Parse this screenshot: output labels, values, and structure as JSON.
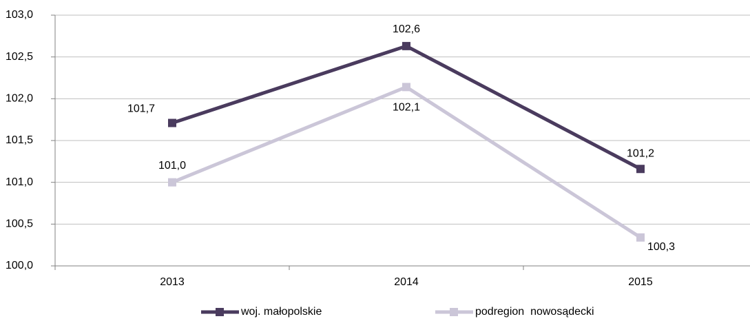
{
  "chart_data": {
    "type": "line",
    "categories": [
      "2013",
      "2014",
      "2015"
    ],
    "series": [
      {
        "name": "woj. małopolskie",
        "color": "#4a3b5e",
        "values": [
          101.71,
          102.63,
          101.16
        ],
        "value_labels": [
          "101,7",
          "102,6",
          "101,2"
        ]
      },
      {
        "name": "podregion  nowosądecki",
        "color": "#cbc6d8",
        "values": [
          101.0,
          102.14,
          100.34
        ],
        "value_labels": [
          "101,0",
          "102,1",
          "100,3"
        ]
      }
    ],
    "ylim": [
      100,
      103
    ],
    "yticks": [
      {
        "value": 100,
        "label": "100,0"
      },
      {
        "value": 100.5,
        "label": "100,5"
      },
      {
        "value": 101,
        "label": "101,0"
      },
      {
        "value": 101.5,
        "label": "101,5"
      },
      {
        "value": 102,
        "label": "102,0"
      },
      {
        "value": 102.5,
        "label": "102,5"
      },
      {
        "value": 103,
        "label": "103,0"
      }
    ],
    "grid": true,
    "legend": "bottom"
  }
}
